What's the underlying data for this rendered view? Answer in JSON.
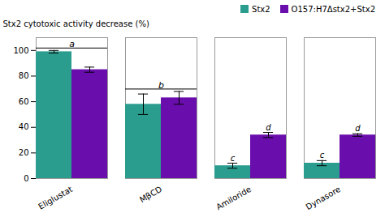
{
  "chart_data": {
    "type": "bar",
    "categories": [
      "Eliglustat",
      "MβCD",
      "Amiloride",
      "Dynasore"
    ],
    "series": [
      {
        "name": "Stx2",
        "color": "#2a9d8f",
        "values": [
          99,
          58,
          10,
          12
        ],
        "errors": [
          1,
          8,
          2,
          2
        ]
      },
      {
        "name": "O157:H7Δstx2+Stx2",
        "color": "#6a0dad",
        "values": [
          85,
          63,
          34,
          34
        ],
        "errors": [
          2,
          5,
          2,
          1
        ]
      }
    ],
    "ylabel": "Stx2 cytotoxic activity decrease (%)",
    "ylim": [
      0,
      110
    ],
    "yticks": [
      0,
      20,
      40,
      60,
      80,
      100
    ],
    "grid": false,
    "legend": "upper right",
    "annotations": [
      {
        "text": "a",
        "category": "Eliglustat"
      },
      {
        "text": "b",
        "category": "MβCD"
      },
      {
        "text": "c",
        "category": "Amiloride",
        "series": "Stx2"
      },
      {
        "text": "d",
        "category": "Amiloride",
        "series": "O157:H7Δstx2+Stx2"
      },
      {
        "text": "c",
        "category": "Dynasore",
        "series": "Stx2"
      },
      {
        "text": "d",
        "category": "Dynasore",
        "series": "O157:H7Δstx2+Stx2"
      }
    ]
  }
}
